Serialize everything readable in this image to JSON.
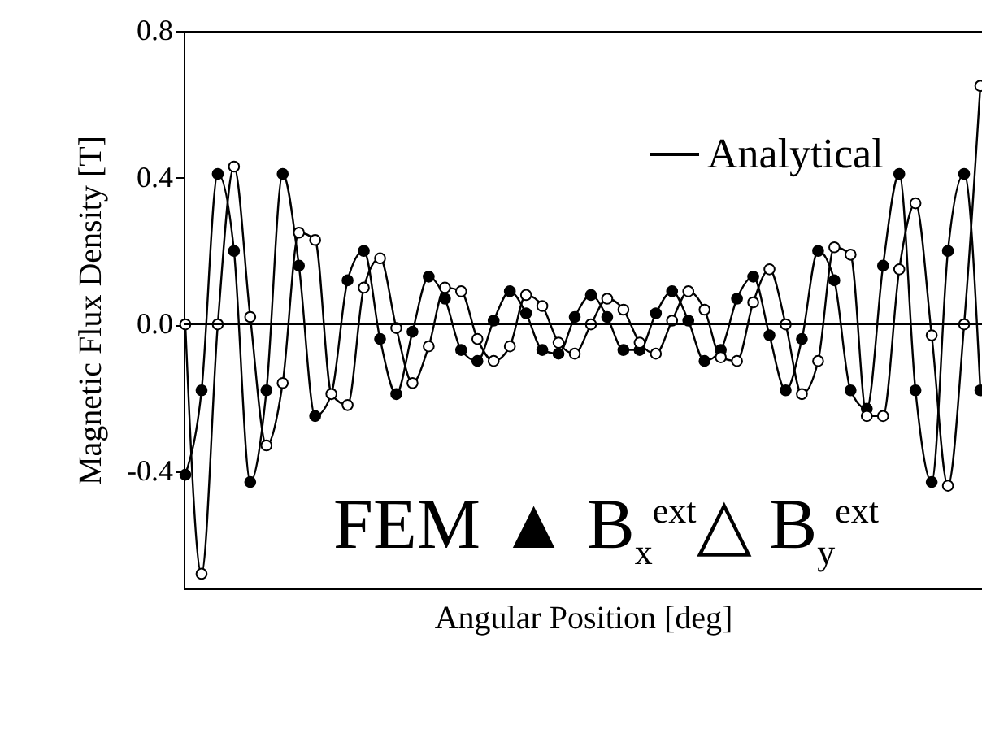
{
  "chart_data": {
    "type": "line",
    "xlabel": "Angular Position [deg]",
    "ylabel": "Magnetic Flux Density [T]",
    "categories": [
      null,
      null,
      null,
      null,
      null,
      null,
      null,
      null,
      null,
      null,
      null,
      null,
      null,
      null,
      null,
      null,
      null,
      null,
      null,
      null,
      null,
      null,
      null,
      null,
      null,
      null,
      null,
      null,
      null,
      null,
      null,
      null,
      null,
      null,
      null,
      null,
      null,
      null,
      null,
      null,
      null,
      null,
      null,
      null,
      null,
      null,
      null,
      null,
      null,
      null
    ],
    "ylim": [
      -0.72,
      0.8
    ],
    "yticks": [
      {
        "value": -0.4,
        "label": "-0.4"
      },
      {
        "value": 0,
        "label": "0.0"
      },
      0.4,
      0.8
    ],
    "grid": false,
    "legend": "top right",
    "line_style": "solid",
    "tick_labels": "y",
    "ref_lines": [
      {
        "axis": "y",
        "value": 0,
        "color": "#000000"
      }
    ],
    "annotations": [
      "FEM ▲ B$_{x}$$^{ext}$△ B$_{y}$$^{ext}$"
    ],
    "series": [
      {
        "name": "Analytical",
        "color": "#000000",
        "values": [
          -0.41,
          -0.18,
          0.41,
          0.2,
          -0.43,
          -0.18,
          0.41,
          0.16,
          -0.25,
          -0.19,
          0.12,
          0.2,
          -0.04,
          -0.19,
          -0.02,
          0.13,
          0.07,
          -0.07,
          -0.1,
          0.01,
          0.09,
          0.03,
          -0.07,
          -0.08,
          0.02,
          0.08,
          0.02,
          -0.07,
          -0.07,
          0.03,
          0.09,
          0.01,
          -0.1,
          -0.07,
          0.07,
          0.13,
          -0.03,
          -0.18,
          -0.04,
          0.2,
          0.12,
          -0.18,
          -0.23,
          0.16,
          0.41,
          -0.18,
          -0.43,
          0.2,
          0.41,
          -0.18
        ]
      },
      {
        "color": "#000000",
        "values": [
          0.0,
          -0.68,
          0.0,
          0.43,
          0.02,
          -0.33,
          -0.16,
          0.25,
          0.23,
          -0.19,
          -0.22,
          0.1,
          0.18,
          -0.01,
          -0.16,
          -0.06,
          0.1,
          0.09,
          -0.04,
          -0.1,
          -0.06,
          0.08,
          0.05,
          -0.05,
          -0.08,
          0.0,
          0.07,
          0.04,
          -0.05,
          -0.08,
          0.01,
          0.09,
          0.04,
          -0.09,
          -0.1,
          0.06,
          0.15,
          0.0,
          -0.19,
          -0.1,
          0.21,
          0.19,
          -0.25,
          -0.25,
          0.15,
          0.33,
          -0.03,
          -0.44,
          0.0,
          0.65
        ]
      },
      {
        "type": "scatter",
        "marker": "circle",
        "color": "#000000",
        "values": [
          -0.41,
          -0.18,
          0.41,
          0.2,
          -0.43,
          -0.18,
          0.41,
          0.16,
          -0.25,
          null,
          0.12,
          0.2,
          -0.04,
          -0.19,
          -0.02,
          0.13,
          0.07,
          -0.07,
          -0.1,
          0.01,
          0.09,
          0.03,
          -0.07,
          -0.08,
          0.02,
          0.08,
          0.02,
          -0.07,
          -0.07,
          0.03,
          0.09,
          0.01,
          -0.1,
          -0.07,
          0.07,
          0.13,
          -0.03,
          -0.18,
          -0.04,
          0.2,
          0.12,
          -0.18,
          -0.23,
          0.16,
          0.41,
          -0.18,
          -0.43,
          0.2,
          0.41,
          -0.18
        ]
      },
      {
        "type": "scatter",
        "marker": "circle",
        "color": "#ffffff",
        "values": [
          0.0,
          -0.68,
          0.0,
          0.43,
          0.02,
          -0.33,
          -0.16,
          0.25,
          0.23,
          -0.19,
          -0.22,
          0.1,
          0.18,
          -0.01,
          -0.16,
          -0.06,
          0.1,
          0.09,
          -0.04,
          -0.1,
          -0.06,
          0.08,
          0.05,
          -0.05,
          -0.08,
          0.0,
          0.07,
          0.04,
          -0.05,
          -0.08,
          0.01,
          0.09,
          0.04,
          -0.09,
          -0.1,
          0.06,
          0.15,
          0.0,
          -0.19,
          -0.1,
          0.21,
          0.19,
          -0.25,
          -0.25,
          0.15,
          0.33,
          -0.03,
          -0.44,
          0.0,
          0.65
        ]
      }
    ]
  }
}
